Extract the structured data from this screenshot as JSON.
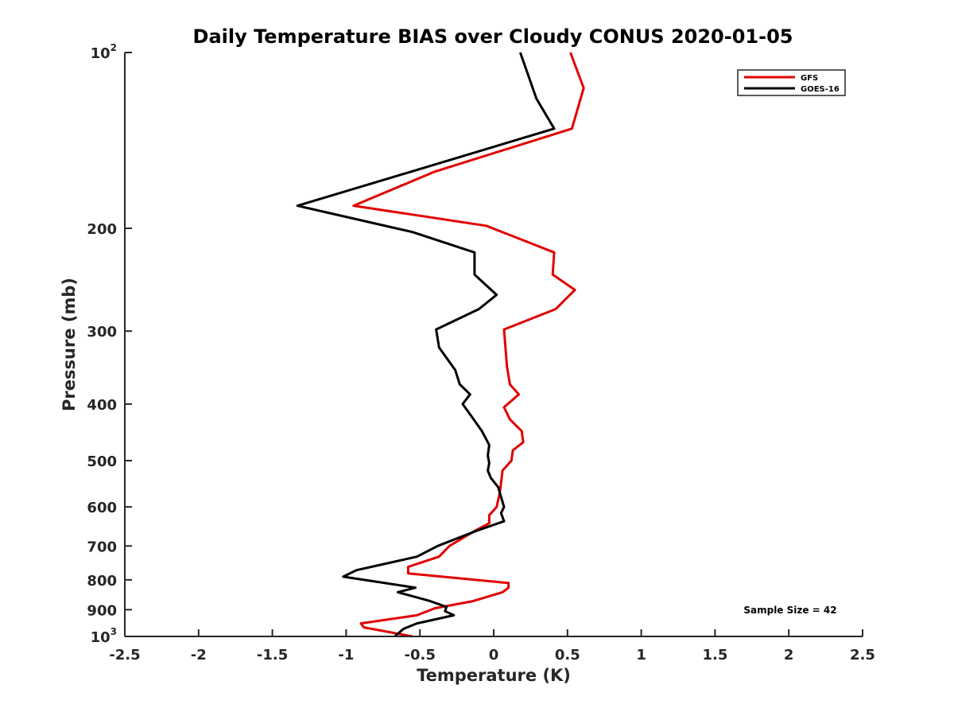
{
  "chart_data": {
    "type": "line",
    "title": "Daily Temperature BIAS over Cloudy CONUS 2020-01-05",
    "xlabel": "Temperature (K)",
    "ylabel": "Pressure (mb)",
    "xlim": [
      -2.5,
      2.5
    ],
    "ylim": [
      100,
      1000
    ],
    "y_scale": "log",
    "y_reversed": true,
    "grid": false,
    "legend_position": "top-right",
    "x_ticks": [
      -2.5,
      -2,
      -1.5,
      -1,
      -0.5,
      0,
      0.5,
      1,
      1.5,
      2,
      2.5
    ],
    "x_tick_labels": [
      "-2.5",
      "-2",
      "-1.5",
      "-1",
      "-0.5",
      "0",
      "0.5",
      "1",
      "1.5",
      "2",
      "2.5"
    ],
    "y_ticks": [
      100,
      200,
      300,
      400,
      500,
      600,
      700,
      800,
      900,
      1000
    ],
    "y_tick_labels": [
      {
        "base": "10",
        "sup": "2"
      },
      {
        "base": "200",
        "sup": ""
      },
      {
        "base": "300",
        "sup": ""
      },
      {
        "base": "400",
        "sup": ""
      },
      {
        "base": "500",
        "sup": ""
      },
      {
        "base": "600",
        "sup": ""
      },
      {
        "base": "700",
        "sup": ""
      },
      {
        "base": "800",
        "sup": ""
      },
      {
        "base": "900",
        "sup": ""
      },
      {
        "base": "10",
        "sup": "3"
      }
    ],
    "annotation": "Sample Size = 42",
    "series": [
      {
        "name": "GFS",
        "color": "#e00000",
        "points": [
          [
            0.52,
            100
          ],
          [
            0.61,
            115
          ],
          [
            0.53,
            135
          ],
          [
            -0.4,
            160
          ],
          [
            -0.95,
            183
          ],
          [
            -0.05,
            198
          ],
          [
            0.41,
            220
          ],
          [
            0.4,
            240
          ],
          [
            0.55,
            255
          ],
          [
            0.42,
            275
          ],
          [
            0.07,
            298
          ],
          [
            0.08,
            320
          ],
          [
            0.09,
            345
          ],
          [
            0.11,
            370
          ],
          [
            0.17,
            385
          ],
          [
            0.07,
            405
          ],
          [
            0.11,
            425
          ],
          [
            0.19,
            445
          ],
          [
            0.2,
            465
          ],
          [
            0.13,
            480
          ],
          [
            0.12,
            500
          ],
          [
            0.06,
            520
          ],
          [
            0.05,
            545
          ],
          [
            0.04,
            570
          ],
          [
            0.02,
            600
          ],
          [
            -0.03,
            620
          ],
          [
            -0.03,
            640
          ],
          [
            -0.13,
            660
          ],
          [
            -0.3,
            700
          ],
          [
            -0.37,
            730
          ],
          [
            -0.58,
            760
          ],
          [
            -0.58,
            780
          ],
          [
            0.1,
            810
          ],
          [
            0.1,
            825
          ],
          [
            0.06,
            840
          ],
          [
            -0.14,
            870
          ],
          [
            -0.4,
            895
          ],
          [
            -0.52,
            920
          ],
          [
            -0.9,
            950
          ],
          [
            -0.88,
            965
          ],
          [
            -0.55,
            1000
          ]
        ]
      },
      {
        "name": "GOES-16",
        "color": "#000000",
        "points": [
          [
            0.18,
            100
          ],
          [
            0.29,
            120
          ],
          [
            0.41,
            135
          ],
          [
            -0.56,
            160
          ],
          [
            -1.33,
            183
          ],
          [
            -0.55,
            203
          ],
          [
            -0.13,
            220
          ],
          [
            -0.13,
            240
          ],
          [
            0.02,
            260
          ],
          [
            -0.1,
            275
          ],
          [
            -0.39,
            298
          ],
          [
            -0.37,
            320
          ],
          [
            -0.26,
            350
          ],
          [
            -0.23,
            370
          ],
          [
            -0.16,
            385
          ],
          [
            -0.21,
            400
          ],
          [
            -0.15,
            420
          ],
          [
            -0.08,
            445
          ],
          [
            -0.03,
            470
          ],
          [
            -0.04,
            490
          ],
          [
            -0.03,
            505
          ],
          [
            -0.04,
            520
          ],
          [
            -0.02,
            535
          ],
          [
            0.03,
            555
          ],
          [
            0.07,
            600
          ],
          [
            0.05,
            615
          ],
          [
            0.07,
            635
          ],
          [
            -0.12,
            660
          ],
          [
            -0.38,
            700
          ],
          [
            -0.52,
            730
          ],
          [
            -0.93,
            770
          ],
          [
            -1.02,
            790
          ],
          [
            -0.53,
            825
          ],
          [
            -0.65,
            840
          ],
          [
            -0.43,
            870
          ],
          [
            -0.32,
            890
          ],
          [
            -0.33,
            905
          ],
          [
            -0.27,
            920
          ],
          [
            -0.52,
            950
          ],
          [
            -0.61,
            970
          ],
          [
            -0.67,
            1000
          ]
        ]
      }
    ]
  }
}
